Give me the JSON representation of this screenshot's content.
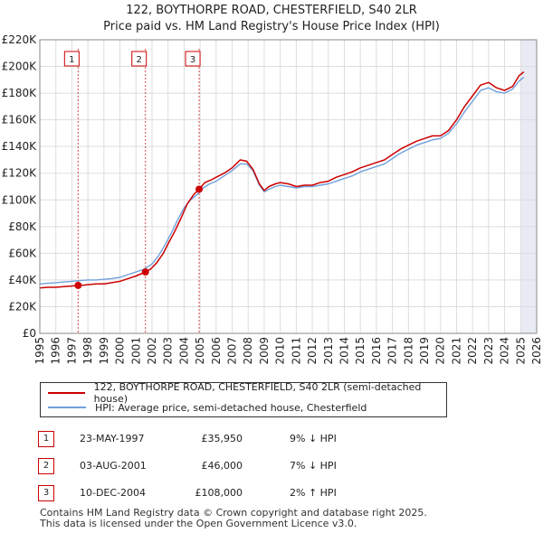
{
  "title_line1": "122, BOYTHORPE ROAD, CHESTERFIELD, S40 2LR",
  "title_line2": "Price paid vs. HM Land Registry's House Price Index (HPI)",
  "chart_data": {
    "type": "line",
    "title": "122, BOYTHORPE ROAD, CHESTERFIELD, S40 2LR — Price paid vs. HM Land Registry's House Price Index (HPI)",
    "xlim": [
      1995,
      2026
    ],
    "ylim": [
      0,
      220000
    ],
    "x_ticks": [
      1995,
      1996,
      1997,
      1998,
      1999,
      2000,
      2001,
      2002,
      2003,
      2004,
      2005,
      2006,
      2007,
      2008,
      2009,
      2010,
      2011,
      2012,
      2013,
      2014,
      2015,
      2016,
      2017,
      2018,
      2019,
      2020,
      2021,
      2022,
      2023,
      2024,
      2025,
      2026
    ],
    "y_ticks": [
      0,
      20000,
      40000,
      60000,
      80000,
      100000,
      120000,
      140000,
      160000,
      180000,
      200000,
      220000
    ],
    "y_tick_labels": [
      "£0",
      "£20K",
      "£40K",
      "£60K",
      "£80K",
      "£100K",
      "£120K",
      "£140K",
      "£160K",
      "£180K",
      "£200K",
      "£220K"
    ],
    "grid": true,
    "series": [
      {
        "name": "122, BOYTHORPE ROAD, CHESTERFIELD, S40 2LR (semi-detached house)",
        "color": "#cc0000",
        "x": [
          1995.0,
          1995.5,
          1996.0,
          1996.5,
          1997.0,
          1997.39,
          1997.7,
          1998.0,
          1998.5,
          1999.0,
          1999.5,
          2000.0,
          2000.5,
          2001.0,
          2001.59,
          2001.9,
          2002.3,
          2002.7,
          2003.0,
          2003.4,
          2003.8,
          2004.2,
          2004.6,
          2004.94,
          2005.3,
          2005.7,
          2006.0,
          2006.5,
          2007.0,
          2007.5,
          2007.9,
          2008.3,
          2008.7,
          2009.0,
          2009.3,
          2009.7,
          2010.0,
          2010.5,
          2011.0,
          2011.5,
          2012.0,
          2012.5,
          2013.0,
          2013.5,
          2014.0,
          2014.5,
          2015.0,
          2015.5,
          2016.0,
          2016.5,
          2017.0,
          2017.5,
          2018.0,
          2018.5,
          2019.0,
          2019.5,
          2020.0,
          2020.5,
          2021.0,
          2021.5,
          2022.0,
          2022.5,
          2023.0,
          2023.5,
          2024.0,
          2024.5,
          2024.9,
          2025.2
        ],
        "values": [
          34000,
          34500,
          34500,
          35000,
          35500,
          35950,
          36000,
          36500,
          37000,
          37000,
          38000,
          39000,
          41000,
          43000,
          46000,
          48000,
          53000,
          60000,
          67000,
          76000,
          86000,
          97000,
          104000,
          108000,
          113000,
          115000,
          117000,
          120000,
          124000,
          130000,
          129000,
          123000,
          112000,
          107000,
          110000,
          112000,
          113000,
          112000,
          110000,
          111000,
          111000,
          113000,
          114000,
          117000,
          119000,
          121000,
          124000,
          126000,
          128000,
          130000,
          134000,
          138000,
          141000,
          144000,
          146000,
          148000,
          148000,
          152000,
          160000,
          170000,
          178000,
          186000,
          188000,
          184000,
          182000,
          185000,
          193000,
          196000
        ]
      },
      {
        "name": "HPI: Average price, semi-detached house, Chesterfield",
        "color": "#6fa0dc",
        "x": [
          1995.0,
          1995.5,
          1996.0,
          1996.5,
          1997.0,
          1997.5,
          1998.0,
          1998.5,
          1999.0,
          1999.5,
          2000.0,
          2000.5,
          2001.0,
          2001.5,
          2002.0,
          2002.4,
          2002.8,
          2003.2,
          2003.6,
          2004.0,
          2004.4,
          2004.8,
          2005.2,
          2005.6,
          2006.0,
          2006.5,
          2007.0,
          2007.5,
          2007.9,
          2008.3,
          2008.7,
          2009.0,
          2009.3,
          2009.7,
          2010.0,
          2010.5,
          2011.0,
          2011.5,
          2012.0,
          2012.5,
          2013.0,
          2013.5,
          2014.0,
          2014.5,
          2015.0,
          2015.5,
          2016.0,
          2016.5,
          2017.0,
          2017.5,
          2018.0,
          2018.5,
          2019.0,
          2019.5,
          2020.0,
          2020.5,
          2021.0,
          2021.5,
          2022.0,
          2022.5,
          2023.0,
          2023.5,
          2024.0,
          2024.5,
          2024.9,
          2025.2
        ],
        "values": [
          37000,
          37500,
          38000,
          38500,
          39000,
          39500,
          40000,
          40000,
          40500,
          41000,
          42000,
          44000,
          46000,
          48000,
          52000,
          58000,
          66000,
          75000,
          85000,
          94000,
          100000,
          104000,
          109000,
          112000,
          114000,
          118000,
          122000,
          127000,
          127000,
          122000,
          111000,
          106000,
          108000,
          110000,
          111000,
          110000,
          109000,
          110000,
          110000,
          111000,
          112000,
          114000,
          116000,
          118000,
          121000,
          123000,
          125000,
          127000,
          131000,
          135000,
          138000,
          141000,
          143000,
          145000,
          146000,
          150000,
          157000,
          166000,
          174000,
          182000,
          184000,
          181000,
          180000,
          183000,
          189000,
          192000
        ]
      }
    ],
    "sales": [
      {
        "id": "1",
        "x": 1997.39,
        "price": 35950
      },
      {
        "id": "2",
        "x": 2001.59,
        "price": 46000
      },
      {
        "id": "3",
        "x": 2004.94,
        "price": 108000
      }
    ],
    "shade_from_x": 2025.0
  },
  "legend": {
    "property_label": "122, BOYTHORPE ROAD, CHESTERFIELD, S40 2LR (semi-detached house)",
    "hpi_label": "HPI: Average price, semi-detached house, Chesterfield"
  },
  "sales_table": [
    {
      "id": "1",
      "date": "23-MAY-1997",
      "price": "£35,950",
      "hpi": "9% ↓ HPI"
    },
    {
      "id": "2",
      "date": "03-AUG-2001",
      "price": "£46,000",
      "hpi": "7% ↓ HPI"
    },
    {
      "id": "3",
      "date": "10-DEC-2004",
      "price": "£108,000",
      "hpi": "2% ↑ HPI"
    }
  ],
  "footer_line1": "Contains HM Land Registry data © Crown copyright and database right 2025.",
  "footer_line2": "This data is licensed under the Open Government Licence v3.0.",
  "colors": {
    "property": "#cc0000",
    "hpi": "#6fa0dc",
    "grid": "#dddddd",
    "shade": "#e8eaf4"
  }
}
